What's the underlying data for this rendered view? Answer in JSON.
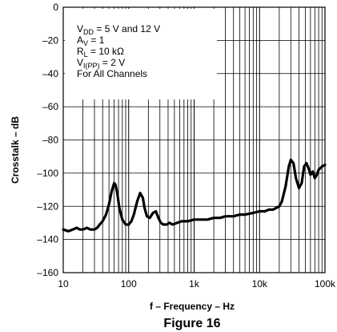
{
  "chart_data": {
    "type": "line",
    "title": "",
    "figure_label": "Figure 16",
    "xlabel": "f – Frequency – Hz",
    "ylabel": "Crosstalk – dB",
    "x_scale": "log",
    "xlim": [
      10,
      100000
    ],
    "ylim": [
      -160,
      0
    ],
    "x_ticks": [
      {
        "value": 10,
        "label": "10"
      },
      {
        "value": 100,
        "label": "100"
      },
      {
        "value": 1000,
        "label": "1k"
      },
      {
        "value": 10000,
        "label": "10k"
      },
      {
        "value": 100000,
        "label": "100k"
      }
    ],
    "y_ticks": [
      {
        "value": 0,
        "label": "0"
      },
      {
        "value": -20,
        "label": "–20"
      },
      {
        "value": -40,
        "label": "–40"
      },
      {
        "value": -60,
        "label": "–60"
      },
      {
        "value": -80,
        "label": "–80"
      },
      {
        "value": -100,
        "label": "–100"
      },
      {
        "value": -120,
        "label": "–120"
      },
      {
        "value": -140,
        "label": "–140"
      },
      {
        "value": -160,
        "label": "–160"
      }
    ],
    "grid": true,
    "conditions": [
      {
        "main": "V",
        "sub": "DD",
        "rest": " = 5 V and 12 V"
      },
      {
        "main": "A",
        "sub": "V",
        "rest": " = 1"
      },
      {
        "main": "R",
        "sub": "L",
        "rest": " = 10 kΩ"
      },
      {
        "main": "V",
        "sub": "I(PP)",
        "rest": " = 2 V"
      },
      {
        "main": "For All Channels",
        "sub": "",
        "rest": ""
      }
    ],
    "series": [
      {
        "x": [
          10,
          12,
          14,
          16,
          18,
          20,
          23,
          26,
          30,
          33,
          36,
          40,
          45,
          50,
          55,
          60,
          63,
          67,
          72,
          80,
          90,
          100,
          110,
          120,
          135,
          150,
          165,
          175,
          190,
          210,
          235,
          260,
          285,
          310,
          340,
          380,
          420,
          470,
          550,
          650,
          800,
          1000,
          1300,
          1600,
          2000,
          2500,
          3000,
          4000,
          5000,
          6000,
          8000,
          10000,
          12000,
          14000,
          16000,
          18000,
          20000,
          22000,
          25000,
          28000,
          30000,
          33000,
          36000,
          40000,
          44000,
          48000,
          52000,
          56000,
          60000,
          65000,
          70000,
          75000,
          80000,
          85000,
          90000,
          100000
        ],
        "y": [
          -134,
          -135,
          -134,
          -133,
          -134,
          -134,
          -133,
          -134,
          -134,
          -133,
          -131,
          -129,
          -125,
          -119,
          -111,
          -106,
          -107,
          -112,
          -121,
          -128,
          -131,
          -131,
          -129,
          -125,
          -117,
          -112,
          -115,
          -121,
          -126,
          -127,
          -124,
          -123,
          -127,
          -130,
          -131,
          -131,
          -130,
          -131,
          -130,
          -129,
          -129,
          -128,
          -128,
          -128,
          -127,
          -127,
          -126,
          -126,
          -125,
          -125,
          -124,
          -123,
          -123,
          -122,
          -122,
          -121,
          -120,
          -117,
          -108,
          -96,
          -92,
          -94,
          -103,
          -109,
          -106,
          -96,
          -94,
          -97,
          -101,
          -99,
          -103,
          -101,
          -98,
          -97,
          -96,
          -95
        ]
      }
    ]
  }
}
